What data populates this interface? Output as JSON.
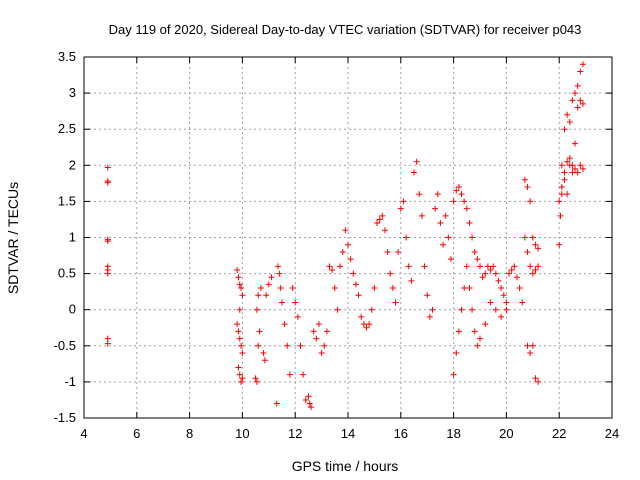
{
  "chart_data": {
    "type": "scatter",
    "title": "Day 119 of 2020, Sidereal Day-to-day VTEC variation (SDTVAR) for receiver p043",
    "xlabel": "GPS time / hours",
    "ylabel": "SDTVAR / TECUs",
    "xlim": [
      4,
      24
    ],
    "ylim": [
      -1.5,
      3.5
    ],
    "xticks": [
      4,
      6,
      8,
      10,
      12,
      14,
      16,
      18,
      20,
      22,
      24
    ],
    "yticks": [
      -1.5,
      -1,
      -0.5,
      0,
      0.5,
      1,
      1.5,
      2,
      2.5,
      3,
      3.5
    ],
    "grid": true,
    "marker": "+",
    "series": [
      {
        "name": "SDTVAR",
        "color": "#ff0000",
        "x": [
          4.9,
          4.9,
          4.9,
          4.9,
          4.9,
          4.9,
          4.9,
          4.9,
          4.9,
          4.9,
          9.8,
          9.85,
          9.9,
          9.95,
          10.0,
          9.8,
          9.85,
          9.9,
          9.95,
          10.0,
          9.85,
          9.9,
          9.95,
          10.0,
          9.9,
          10.5,
          10.55,
          10.6,
          10.65,
          10.55,
          10.6,
          10.7,
          10.8,
          10.85,
          10.9,
          11.0,
          11.1,
          11.3,
          11.35,
          11.4,
          11.45,
          11.5,
          11.6,
          11.7,
          11.8,
          11.9,
          12.0,
          12.1,
          12.2,
          12.3,
          12.4,
          12.5,
          12.55,
          12.6,
          12.7,
          12.8,
          12.9,
          13.0,
          13.1,
          13.2,
          13.3,
          13.4,
          13.5,
          13.6,
          13.7,
          13.8,
          13.9,
          14.0,
          14.1,
          14.2,
          14.3,
          14.4,
          14.5,
          14.6,
          14.7,
          14.8,
          14.9,
          15.0,
          15.1,
          15.2,
          15.3,
          15.4,
          15.5,
          15.6,
          15.7,
          15.8,
          15.9,
          16.0,
          16.1,
          16.2,
          16.3,
          16.4,
          16.5,
          16.6,
          16.7,
          16.8,
          16.9,
          17.0,
          17.1,
          17.2,
          17.3,
          17.4,
          17.5,
          17.6,
          17.7,
          17.8,
          17.9,
          18.0,
          18.1,
          18.2,
          18.3,
          18.4,
          18.5,
          18.6,
          18.7,
          18.8,
          18.9,
          19.0,
          19.1,
          19.2,
          19.3,
          19.4,
          19.5,
          19.6,
          19.7,
          19.8,
          19.9,
          20.0,
          20.1,
          20.2,
          20.3,
          20.4,
          20.5,
          20.6,
          20.7,
          20.8,
          20.9,
          21.0,
          21.1,
          21.2,
          18.0,
          18.1,
          18.2,
          18.3,
          18.4,
          18.5,
          18.6,
          18.7,
          18.8,
          18.9,
          19.0,
          19.2,
          19.4,
          19.6,
          19.8,
          20.0,
          20.7,
          20.8,
          20.9,
          21.0,
          21.1,
          21.2,
          20.8,
          20.9,
          21.0,
          21.1,
          21.2,
          22.0,
          22.05,
          22.1,
          22.2,
          22.3,
          22.4,
          22.5,
          22.6,
          22.7,
          22.8,
          22.9,
          22.1,
          22.2,
          22.3,
          22.4,
          22.5,
          22.6,
          22.7,
          22.8,
          22.9,
          22.0,
          22.1,
          22.2,
          22.3,
          22.4,
          22.5,
          22.6,
          22.7,
          22.8,
          22.9
        ],
        "y": [
          1.97,
          1.76,
          1.78,
          0.97,
          0.95,
          0.6,
          0.55,
          0.5,
          -0.4,
          -0.47,
          0.55,
          0.45,
          0.35,
          0.3,
          0.2,
          -0.2,
          -0.3,
          -0.4,
          -0.5,
          -0.6,
          -0.8,
          -0.9,
          -1.0,
          -0.95,
          0.0,
          -0.95,
          -1.0,
          -0.5,
          -0.3,
          0.0,
          0.2,
          0.3,
          -0.6,
          -0.7,
          0.2,
          0.35,
          0.45,
          -1.3,
          0.6,
          0.5,
          0.3,
          0.1,
          -0.2,
          -0.5,
          -0.9,
          0.3,
          0.1,
          -0.1,
          -0.5,
          -0.9,
          -1.25,
          -1.2,
          -1.3,
          -1.35,
          -0.3,
          -0.4,
          -0.2,
          -0.6,
          -0.5,
          -0.3,
          0.6,
          0.55,
          0.3,
          0.0,
          0.6,
          0.8,
          1.1,
          0.9,
          0.7,
          0.5,
          0.35,
          0.2,
          -0.1,
          -0.2,
          -0.25,
          -0.2,
          0.0,
          0.3,
          1.2,
          1.25,
          1.3,
          1.1,
          0.8,
          0.5,
          0.3,
          0.1,
          0.8,
          1.4,
          1.5,
          1.0,
          0.6,
          0.4,
          1.9,
          2.05,
          1.6,
          1.3,
          0.6,
          0.2,
          -0.1,
          0.0,
          1.4,
          1.6,
          1.2,
          0.9,
          1.3,
          1.0,
          0.7,
          1.5,
          1.65,
          1.7,
          1.6,
          1.5,
          1.4,
          1.2,
          1.0,
          0.8,
          0.7,
          0.6,
          0.45,
          0.5,
          0.6,
          0.55,
          0.6,
          0.5,
          0.4,
          0.3,
          0.2,
          0.1,
          0.5,
          0.55,
          0.6,
          0.45,
          0.3,
          0.1,
          1.8,
          1.7,
          1.5,
          1.0,
          0.9,
          0.85,
          -0.9,
          -0.6,
          -0.3,
          0.0,
          0.3,
          0.6,
          0.3,
          0.0,
          -0.3,
          -0.5,
          -0.4,
          -0.2,
          0.1,
          0.0,
          -0.1,
          0.0,
          1.0,
          0.8,
          0.6,
          0.5,
          0.55,
          0.6,
          -0.5,
          -0.6,
          -0.5,
          -0.95,
          -1.0,
          0.9,
          1.3,
          1.6,
          2.5,
          2.7,
          2.6,
          2.9,
          3.0,
          3.1,
          3.3,
          3.4,
          2.0,
          1.9,
          2.05,
          2.1,
          2.0,
          1.95,
          1.9,
          2.0,
          1.95,
          1.5,
          1.7,
          1.8,
          1.6,
          2.0,
          1.9,
          2.3,
          2.8,
          2.9,
          2.85
        ]
      }
    ]
  }
}
